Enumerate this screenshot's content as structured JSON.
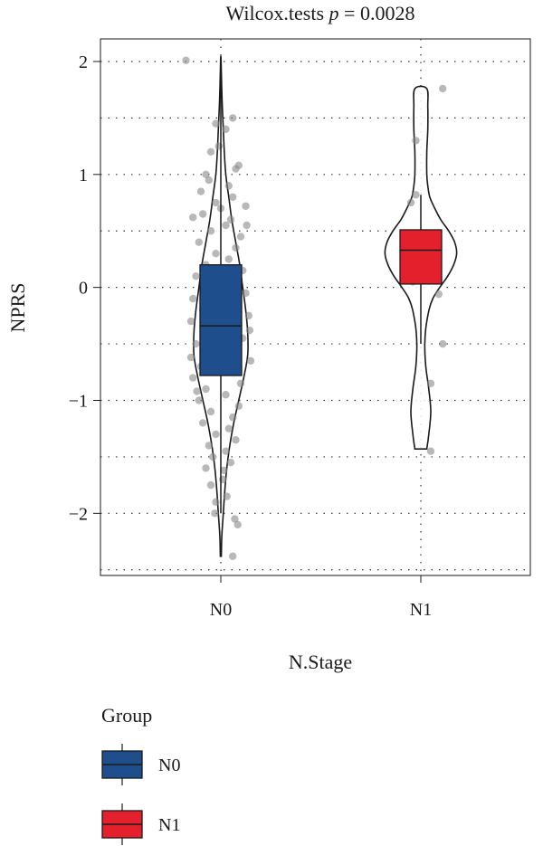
{
  "chart_data": {
    "type": "violin-box",
    "title_prefix": "Wilcox.tests ",
    "title_p": "p",
    "title_suffix": " = 0.0028",
    "xlabel": "N.Stage",
    "ylabel": "NPRS",
    "categories": [
      "N0",
      "N1"
    ],
    "ylim": [
      -2.55,
      2.2
    ],
    "yticks": [
      -2,
      -1,
      0,
      1,
      2
    ],
    "grid": "dotted",
    "colors": {
      "N0": "#1f4e8c",
      "N1": "#e3202b",
      "points": "#888888"
    },
    "legend": {
      "title": "Group",
      "position": "bottom-left",
      "entries": [
        "N0",
        "N1"
      ]
    },
    "groups": [
      {
        "name": "N0",
        "box": {
          "q1": -0.78,
          "median": -0.34,
          "q3": 0.2,
          "whisker_low": -2.0,
          "whisker_high": 2.0
        },
        "violin": {
          "y": [
            -2.38,
            -2.2,
            -2.0,
            -1.8,
            -1.6,
            -1.4,
            -1.2,
            -1.0,
            -0.8,
            -0.6,
            -0.4,
            -0.2,
            0.0,
            0.2,
            0.4,
            0.6,
            0.8,
            1.0,
            1.2,
            1.4,
            1.6,
            1.8,
            2.02
          ],
          "half_width": [
            0.005,
            0.01,
            0.025,
            0.04,
            0.06,
            0.09,
            0.13,
            0.18,
            0.23,
            0.27,
            0.27,
            0.25,
            0.22,
            0.19,
            0.15,
            0.11,
            0.08,
            0.05,
            0.035,
            0.025,
            0.015,
            0.008,
            0.002
          ]
        },
        "points": [
          [
            -0.35,
            2.01
          ],
          [
            0.12,
            1.5
          ],
          [
            -0.05,
            1.45
          ],
          [
            0.05,
            1.4
          ],
          [
            -0.1,
            1.2
          ],
          [
            0.15,
            1.05
          ],
          [
            0.18,
            1.08
          ],
          [
            -0.15,
            1.0
          ],
          [
            -0.2,
            0.85
          ],
          [
            -0.12,
            0.95
          ],
          [
            0.08,
            0.9
          ],
          [
            0.12,
            0.8
          ],
          [
            -0.05,
            0.75
          ],
          [
            0.0,
            0.7
          ],
          [
            -0.18,
            0.65
          ],
          [
            0.1,
            0.6
          ],
          [
            0.05,
            0.55
          ],
          [
            -0.1,
            0.5
          ],
          [
            0.2,
            0.45
          ],
          [
            -0.22,
            0.4
          ],
          [
            0.15,
            0.35
          ],
          [
            -0.05,
            0.3
          ],
          [
            0.08,
            0.25
          ],
          [
            -0.15,
            0.2
          ],
          [
            0.22,
            0.15
          ],
          [
            -0.25,
            0.1
          ],
          [
            0.18,
            0.05
          ],
          [
            -0.08,
            0.0
          ],
          [
            0.25,
            -0.05
          ],
          [
            -0.28,
            -0.1
          ],
          [
            0.12,
            -0.15
          ],
          [
            -0.18,
            -0.2
          ],
          [
            0.28,
            -0.25
          ],
          [
            -0.3,
            -0.3
          ],
          [
            0.05,
            -0.35
          ],
          [
            -0.12,
            -0.4
          ],
          [
            0.22,
            -0.45
          ],
          [
            -0.25,
            -0.5
          ],
          [
            0.15,
            -0.55
          ],
          [
            -0.05,
            -0.6
          ],
          [
            0.3,
            -0.65
          ],
          [
            -0.2,
            -0.7
          ],
          [
            0.1,
            -0.75
          ],
          [
            -0.28,
            -0.8
          ],
          [
            0.2,
            -0.85
          ],
          [
            -0.15,
            -0.9
          ],
          [
            0.05,
            -0.95
          ],
          [
            -0.22,
            -1.0
          ],
          [
            0.18,
            -1.05
          ],
          [
            -0.1,
            -1.1
          ],
          [
            0.12,
            -1.15
          ],
          [
            -0.18,
            -1.2
          ],
          [
            0.08,
            -1.25
          ],
          [
            -0.05,
            -1.3
          ],
          [
            0.15,
            -1.35
          ],
          [
            -0.12,
            -1.4
          ],
          [
            0.05,
            -1.45
          ],
          [
            -0.08,
            -1.5
          ],
          [
            0.1,
            -1.55
          ],
          [
            -0.15,
            -1.6
          ],
          [
            0.02,
            -1.7
          ],
          [
            -0.1,
            -1.75
          ],
          [
            0.06,
            -1.85
          ],
          [
            -0.05,
            -1.9
          ],
          [
            -0.06,
            -2.0
          ],
          [
            0.14,
            -2.05
          ],
          [
            0.17,
            -2.1
          ],
          [
            0.12,
            -2.38
          ],
          [
            -0.28,
            0.62
          ],
          [
            0.26,
            0.55
          ],
          [
            -0.3,
            -0.62
          ],
          [
            0.29,
            -0.38
          ],
          [
            -0.24,
            -0.92
          ],
          [
            0.25,
            0.72
          ],
          [
            -0.02,
            1.25
          ],
          [
            0.03,
            -1.62
          ]
        ]
      },
      {
        "name": "N1",
        "box": {
          "q1": 0.03,
          "median": 0.33,
          "q3": 0.51,
          "whisker_low": -0.5,
          "whisker_high": 0.82
        },
        "violin": {
          "y": [
            -1.43,
            -1.3,
            -1.1,
            -0.9,
            -0.7,
            -0.5,
            -0.3,
            -0.1,
            0.1,
            0.2,
            0.3,
            0.4,
            0.5,
            0.6,
            0.7,
            0.8,
            0.9,
            1.0,
            1.2,
            1.4,
            1.6,
            1.76
          ],
          "half_width": [
            0.06,
            0.08,
            0.1,
            0.08,
            0.05,
            0.04,
            0.06,
            0.12,
            0.27,
            0.33,
            0.36,
            0.34,
            0.28,
            0.2,
            0.14,
            0.09,
            0.07,
            0.06,
            0.06,
            0.07,
            0.07,
            0.06
          ]
        },
        "points": [
          [
            0.22,
            1.76
          ],
          [
            -0.05,
            1.3
          ],
          [
            -0.1,
            0.75
          ],
          [
            -0.05,
            0.82
          ],
          [
            -0.15,
            0.38
          ],
          [
            -0.1,
            0.3
          ],
          [
            0.15,
            0.35
          ],
          [
            0.05,
            0.25
          ],
          [
            -0.08,
            0.05
          ],
          [
            0.18,
            -0.06
          ],
          [
            0.22,
            -0.5
          ],
          [
            0.1,
            -0.85
          ],
          [
            0.1,
            -1.45
          ]
        ]
      }
    ]
  }
}
